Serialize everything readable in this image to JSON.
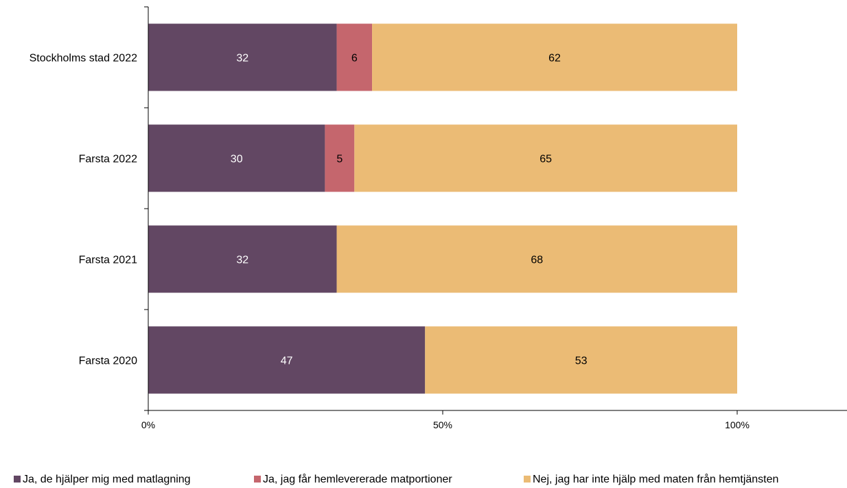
{
  "chart_data": {
    "type": "bar",
    "orientation": "horizontal",
    "stacked": true,
    "percent_stacked": true,
    "categories": [
      "Stockholms stad 2022",
      "Farsta 2022",
      "Farsta 2021",
      "Farsta 2020"
    ],
    "series": [
      {
        "name": "Ja, de hjälper mig med matlagning",
        "color": "#624763",
        "label_color": "#ffffff",
        "values": [
          32,
          30,
          32,
          47
        ]
      },
      {
        "name": "Ja, jag får hemlevererade matportioner",
        "color": "#c5666d",
        "label_color": "#000000",
        "values": [
          6,
          5,
          0,
          0
        ]
      },
      {
        "name": "Nej, jag har inte hjälp med maten från hemtjänsten",
        "color": "#ebbb75",
        "label_color": "#000000",
        "values": [
          62,
          65,
          68,
          53
        ]
      }
    ],
    "x_ticks": [
      "0%",
      "50%",
      "100%"
    ],
    "xlim": [
      0,
      100
    ],
    "grid": false,
    "legend_position": "bottom",
    "title": "",
    "xlabel": "",
    "ylabel": ""
  }
}
